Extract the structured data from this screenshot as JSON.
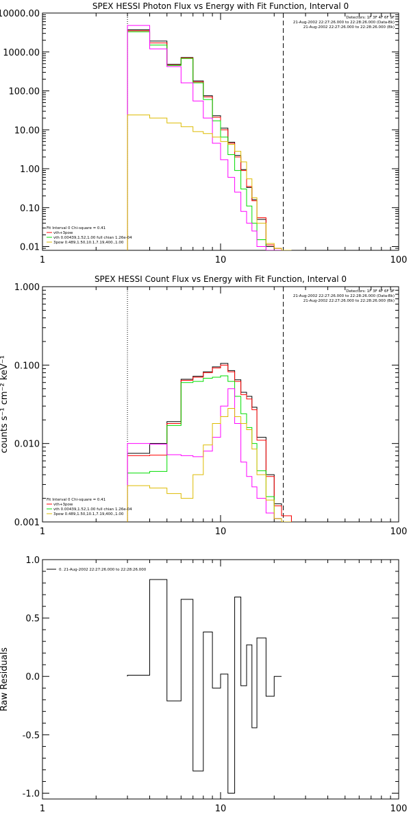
{
  "chart_data": [
    {
      "type": "line",
      "title": "SPEX HESSI Photon Flux vs Energy with Fit Function, Interval 0",
      "xlabel": "",
      "ylabel": "",
      "x_scale": "log",
      "y_scale": "log",
      "xlim": [
        1,
        100
      ],
      "ylim": [
        0.008,
        10000
      ],
      "x_ticks": [
        1,
        10,
        100
      ],
      "x_tick_labels": [
        "1",
        "10",
        "100"
      ],
      "y_ticks": [
        0.01,
        0.1,
        1,
        10,
        100,
        1000,
        10000
      ],
      "y_tick_labels": [
        "0.01",
        "0.10",
        "1.00",
        "10.00",
        "100.00",
        "1000.00",
        "10000.00"
      ],
      "vlines": [
        {
          "x": 3,
          "style": "dotted"
        },
        {
          "x": 22.5,
          "style": "dashed"
        }
      ],
      "bin_edges": [
        3,
        4,
        5,
        6,
        7,
        8,
        9,
        10,
        11,
        12,
        13,
        14,
        15,
        16,
        18,
        20,
        22,
        25
      ],
      "header_right": [
        "Detectors: 1F 3F 4F 6F 9F",
        "21-Aug-2002 22:27:26.000 to 22:28:26.000 (Data-Bk)",
        "21-Aug-2002 22:27:26.000 to 22:28:26.000 (Bk)"
      ],
      "legend_lines": [
        "Fit Interval 0   Chi-square = 0.41",
        "vth+3pow",
        "vth 0.00439,1.52,1.00  full chian 1.26e-04",
        "3pow 0.489,1.50,10.1,7.19,400.,1.00"
      ],
      "series": [
        {
          "color": "#000000",
          "values": [
            3700,
            1900,
            480,
            720,
            180,
            75,
            23,
            11,
            4.8,
            2.2,
            0.95,
            0.33,
            0.16,
            0.05,
            0.01,
            0.009,
            0.008
          ]
        },
        {
          "color": "#ff0000",
          "values": [
            3500,
            1700,
            460,
            700,
            170,
            70,
            21,
            10,
            4.5,
            2.0,
            0.9,
            0.35,
            0.15,
            0.055,
            0.011,
            0.009,
            0.008
          ]
        },
        {
          "color": "#00dd00",
          "values": [
            3300,
            1500,
            450,
            680,
            160,
            60,
            17,
            6.5,
            2.3,
            0.9,
            0.3,
            0.11,
            0.04,
            0.015,
            0.008,
            0.008,
            0.008
          ]
        },
        {
          "color": "#ff00ff",
          "values": [
            4800,
            1200,
            420,
            160,
            55,
            20,
            4.5,
            1.7,
            0.6,
            0.25,
            0.08,
            0.04,
            0.025,
            0.01,
            0.008,
            0.008,
            0.008
          ]
        },
        {
          "color": "#ddbb00",
          "values": [
            24,
            20,
            15,
            12,
            9,
            8,
            6.5,
            5,
            4.2,
            2.8,
            1.5,
            0.55,
            0.18,
            0.04,
            0.012,
            0.009,
            0.008
          ]
        }
      ]
    },
    {
      "type": "line",
      "title": "SPEX HESSI Count Flux vs Energy with Fit Function, Interval 0",
      "xlabel": "",
      "ylabel": "counts s⁻¹ cm⁻² keV⁻¹",
      "x_scale": "log",
      "y_scale": "log",
      "xlim": [
        1,
        100
      ],
      "ylim": [
        0.001,
        1
      ],
      "x_ticks": [
        1,
        10,
        100
      ],
      "x_tick_labels": [
        "1",
        "10",
        "100"
      ],
      "y_ticks": [
        0.001,
        0.01,
        0.1,
        1
      ],
      "y_tick_labels": [
        "0.001",
        "0.010",
        "0.100",
        "1.000"
      ],
      "vlines": [
        {
          "x": 3,
          "style": "dotted"
        },
        {
          "x": 22.5,
          "style": "dashed"
        }
      ],
      "bin_edges": [
        3,
        4,
        5,
        6,
        7,
        8,
        9,
        10,
        11,
        12,
        13,
        14,
        15,
        16,
        18,
        20,
        22,
        25
      ],
      "header_right": [
        "Detectors: 1F 3F 4F 6F 9F",
        "21-Aug-2002 22:27:26.000 to 22:28:26.000 (Data-Bk)",
        "21-Aug-2002 22:27:26.000 to 22:28:26.000 (Bk)"
      ],
      "legend_lines": [
        "Fit Interval 0   Chi-square = 0.41",
        "vth+3pow",
        "vth 0.00439,1.52,1.00  full chian 1.26e-04",
        "3pow 0.489,1.50,10.1,7.19,400.,1.00"
      ],
      "series": [
        {
          "color": "#000000",
          "values": [
            0.0075,
            0.01,
            0.019,
            0.066,
            0.072,
            0.082,
            0.095,
            0.105,
            0.085,
            0.065,
            0.045,
            0.04,
            0.029,
            0.012,
            0.004,
            0.0017,
            0.0012
          ]
        },
        {
          "color": "#ff0000",
          "values": [
            0.007,
            0.0071,
            0.018,
            0.064,
            0.07,
            0.08,
            0.092,
            0.1,
            0.082,
            0.062,
            0.042,
            0.037,
            0.027,
            0.011,
            0.0038,
            0.0016,
            0.0012
          ]
        },
        {
          "color": "#00dd00",
          "values": [
            0.0042,
            0.0044,
            0.017,
            0.06,
            0.062,
            0.068,
            0.07,
            0.073,
            0.062,
            0.04,
            0.024,
            0.016,
            0.01,
            0.0045,
            0.0021,
            0.0011,
            0.001
          ]
        },
        {
          "color": "#ff00ff",
          "values": [
            0.01,
            0.0098,
            0.0072,
            0.007,
            0.0068,
            0.008,
            0.012,
            0.03,
            0.05,
            0.018,
            0.0058,
            0.0038,
            0.0028,
            0.002,
            0.0013,
            0.0011,
            0.001
          ]
        },
        {
          "color": "#ddbb00",
          "values": [
            0.0029,
            0.0027,
            0.0023,
            0.002,
            0.004,
            0.0096,
            0.018,
            0.022,
            0.028,
            0.022,
            0.018,
            0.015,
            0.0085,
            0.004,
            0.0019,
            0.0011,
            0.001
          ]
        }
      ]
    },
    {
      "type": "line",
      "title": "",
      "xlabel": "",
      "ylabel": "Raw Residuals",
      "x_scale": "log",
      "y_scale": "linear",
      "xlim": [
        1,
        100
      ],
      "ylim": [
        -1.05,
        1.0
      ],
      "x_ticks": [
        1,
        10,
        100
      ],
      "x_tick_labels": [
        "1",
        "10",
        "100"
      ],
      "y_ticks": [
        -1.0,
        -0.5,
        0.0,
        0.5,
        1.0
      ],
      "y_tick_labels": [
        "-1.0",
        "-0.5",
        "0.0",
        "0.5",
        "1.0"
      ],
      "legend_lines": [
        "0. 21-Aug-2002 22:27:26.000 to 22:28:26.000"
      ],
      "bin_edges": [
        3,
        4,
        5,
        6,
        7,
        8,
        9,
        10,
        11,
        12,
        13,
        14,
        15,
        16,
        18,
        20,
        22
      ],
      "series": [
        {
          "color": "#000000",
          "values": [
            0.01,
            0.83,
            -0.21,
            0.66,
            -0.81,
            0.38,
            -0.1,
            0.02,
            -1.0,
            0.68,
            -0.08,
            0.27,
            -0.44,
            0.33,
            -0.17,
            0.0
          ]
        }
      ]
    }
  ]
}
